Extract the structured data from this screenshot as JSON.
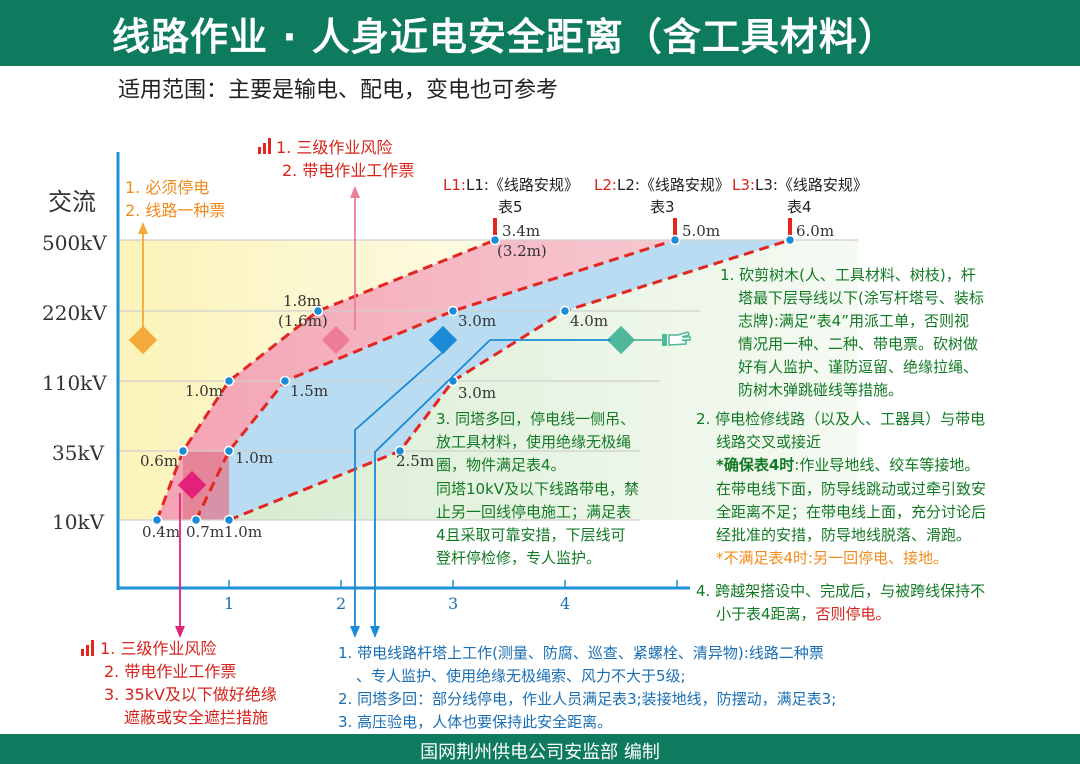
{
  "header": {
    "title": "线路作业 · 人身近电安全距离（含工具材料）"
  },
  "subtitle": "适用范围：主要是输电、配电，变电也可参考",
  "footer": "国网荆州供电公司安监部    编制",
  "axis": {
    "y_title": "交流",
    "y_ticks": [
      "500kV",
      "220kV",
      "110kV",
      "35kV",
      "10kV"
    ],
    "x_ticks": [
      "1",
      "2",
      "3",
      "4"
    ]
  },
  "curve_labels": {
    "L1": [
      "L1:《线路安规》",
      "表5"
    ],
    "L2": [
      "L2:《线路安规》",
      "表3"
    ],
    "L3": [
      "L3:《线路安规》",
      "表4"
    ]
  },
  "point_labels": {
    "l1_500": "3.4m",
    "l1_500b": "(3.2m)",
    "l2_500": "5.0m",
    "l3_500": "6.0m",
    "l1_220": "1.8m",
    "l1_220b": "(1.6m)",
    "l2_220": "3.0m",
    "l3_220": "4.0m",
    "l1_110": "1.0m",
    "l2_110": "1.5m",
    "l3_110": "3.0m",
    "l1_35": "0.6m",
    "l2_35": "1.0m",
    "l3_35": "2.5m",
    "l1_10": "0.4m",
    "l2_10": "0.7m",
    "l3_10": "1.0m"
  },
  "zone_yellow": [
    "1. 必须停电",
    "2. 线路一种票"
  ],
  "zone_pink_top": [
    "1. 三级作业风险",
    "2. 带电作业工作票"
  ],
  "zone_pink_bottom": [
    "1. 三级作业风险",
    "2. 带电作业工作票",
    "3. 35kV及以下做好绝缘",
    "遮蔽或安全遮拦措施"
  ],
  "zone_blue": [
    "1. 带电线路杆塔上工作(测量、防腐、巡查、紧螺栓、清异物):线路二种票",
    "、专人监护、使用绝缘无极绳索、风力不大于5级;",
    "2. 同塔多回：部分线停电，作业人员满足表3;装接地线，防摆动，满足表3;",
    "3. 高压验电，人体也要保持此安全距离。"
  ],
  "zone_green_right": [
    "1. 砍剪树木(人、工具材料、树枝)，杆",
    "塔最下层导线以下(涂写杆塔号、装标",
    "志牌):满足“表4”用派工单，否则视",
    "情况用一种、二种、带电票。砍树做",
    "好有人监护、谨防逗留、绝缘拉绳、",
    "防树木弹跳碰线等措施。"
  ],
  "zone_green_mid": [
    "3. 同塔多回，停电线一侧吊、",
    "放工具材料，使用绝缘无极绳",
    "圈，物件满足表4。",
    "同塔10kV及以下线路带电，禁",
    "止另一回线停电施工；满足表",
    "4且采取可靠安措，下层线可",
    "登杆停检修，专人监护。"
  ],
  "zone_green_cross": {
    "line1": "2. 停电检修线路（以及人、工器具）与带电",
    "line2": "线路交叉或接近",
    "line3_red": "*确保表4时",
    "line3_rest": ":作业导地线、绞车等接地。",
    "line4": "在带电线下面，防导线跳动或过牵引致安",
    "line5": "全距离不足；在带电线上面，充分讨论后",
    "line6": "经批准的安措，防导地线脱落、滑跑。",
    "line7_red": "*不满足表4时",
    "line7_rest": ":另一回停电、接地。"
  },
  "zone_green_4": [
    "4. 跨越架搭设中、完成后，与被跨线保持不",
    "小于表4距离，",
    "否则停电。"
  ],
  "colors": {
    "header_bg": "#0e7a5e",
    "yellow_zone": "#fbf6c4",
    "pink_zone": "#f2b3be",
    "blue_zone": "#b9dcf3",
    "green_zone": "#d6eccf",
    "curve_red": "#e32620",
    "marker_blue": "#1a8bd6",
    "text_green": "#127a24",
    "text_blue": "#1a6fb3",
    "text_red": "#d6231c",
    "text_orange": "#f08a1c"
  }
}
